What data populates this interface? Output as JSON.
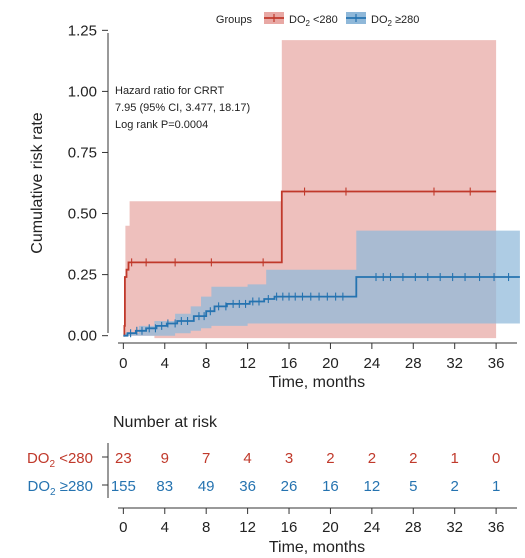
{
  "chart_data": [
    {
      "type": "line",
      "subtype": "kaplan-meier-cumulative-risk",
      "title": "",
      "xlabel": "Time, months",
      "ylabel": "Cumulative risk rate",
      "xlim": [
        -1,
        38.5
      ],
      "ylim": [
        -0.03,
        1.28
      ],
      "x_ticks": [
        0,
        4,
        8,
        12,
        16,
        20,
        24,
        28,
        32,
        36
      ],
      "y_ticks": [
        0.0,
        0.25,
        0.5,
        0.75,
        1.0,
        1.25
      ],
      "y_tick_labels": [
        "0.00",
        "0.25",
        "0.50",
        "0.75",
        "1.00",
        "1.25"
      ],
      "grid": false,
      "legend": {
        "title": "Groups",
        "placement": "top",
        "entries": [
          {
            "label": "DO",
            "sub": "2",
            "suffix": " <280",
            "color": "#c0392b"
          },
          {
            "label": "DO",
            "sub": "2",
            "suffix": " ≥280",
            "color": "#2573b0"
          }
        ]
      },
      "annotation": [
        "Hazard ratio for CRRT",
        "7.95 (95% CI, 3.477, 18.17)",
        "Log rank P=0.0004"
      ],
      "series": [
        {
          "name": "DO2 <280",
          "color": "#c0392b",
          "fill": "#e8a8a4",
          "steps": [
            [
              0,
              0
            ],
            [
              0.1,
              0.04
            ],
            [
              0.15,
              0.24
            ],
            [
              0.3,
              0.27
            ],
            [
              0.5,
              0.3
            ],
            [
              15.3,
              0.3
            ],
            [
              15.3,
              0.59
            ],
            [
              36,
              0.59
            ]
          ],
          "ci_steps": [
            [
              0.2,
              0.0,
              0.45
            ],
            [
              0.6,
              0.0,
              0.55
            ],
            [
              3,
              -0.01,
              0.55
            ],
            [
              15.3,
              -0.01,
              0.55
            ],
            [
              15.3,
              -0.01,
              1.21
            ],
            [
              36,
              -0.01,
              1.21
            ]
          ],
          "censor": [
            0.8,
            2.2,
            5,
            8.5,
            13.5,
            17.5,
            21.5,
            30,
            33.5
          ]
        },
        {
          "name": "DO2 ≥280",
          "color": "#2573b0",
          "fill": "#8fb8d9",
          "steps": [
            [
              0,
              0
            ],
            [
              0.4,
              0.01
            ],
            [
              1.2,
              0.02
            ],
            [
              2.2,
              0.03
            ],
            [
              3.2,
              0.04
            ],
            [
              4.2,
              0.05
            ],
            [
              5.2,
              0.06
            ],
            [
              6.8,
              0.08
            ],
            [
              8,
              0.1
            ],
            [
              8.8,
              0.12
            ],
            [
              10,
              0.13
            ],
            [
              12.2,
              0.14
            ],
            [
              13.6,
              0.15
            ],
            [
              14.6,
              0.16
            ],
            [
              22.5,
              0.16
            ],
            [
              22.5,
              0.24
            ],
            [
              38.3,
              0.24
            ]
          ],
          "ci_steps": [
            [
              0,
              0,
              0.01
            ],
            [
              1.5,
              0.0,
              0.04
            ],
            [
              3,
              0.0,
              0.06
            ],
            [
              5,
              0.01,
              0.09
            ],
            [
              6.5,
              0.02,
              0.12
            ],
            [
              7.5,
              0.03,
              0.16
            ],
            [
              8.5,
              0.04,
              0.2
            ],
            [
              12,
              0.05,
              0.21
            ],
            [
              13.8,
              0.05,
              0.27
            ],
            [
              22.5,
              0.05,
              0.27
            ],
            [
              22.5,
              0.05,
              0.43
            ],
            [
              38.3,
              0.05,
              0.43
            ]
          ],
          "censor": [
            0.7,
            1.3,
            1.8,
            2.5,
            3.1,
            3.7,
            4.3,
            5.0,
            5.6,
            6.2,
            7.3,
            7.8,
            8.4,
            9.2,
            9.9,
            10.6,
            11.2,
            11.8,
            12.5,
            13.1,
            14.0,
            14.8,
            15.4,
            16.0,
            16.6,
            17.3,
            18.1,
            18.9,
            19.7,
            20.5,
            21.2,
            24.4,
            25.1,
            25.8,
            27.0,
            28.2,
            29.4,
            30.6,
            31.8,
            33.0,
            34.4,
            35.8,
            37.2
          ]
        }
      ]
    },
    {
      "type": "table",
      "title": "Number at risk",
      "xlabel": "Time, months",
      "xlim": [
        -1,
        38.5
      ],
      "x_ticks": [
        0,
        4,
        8,
        12,
        16,
        20,
        24,
        28,
        32,
        36
      ],
      "rows": [
        {
          "label": "DO",
          "sub": "2",
          "suffix": " <280",
          "color": "#c0392b",
          "values": [
            23,
            9,
            7,
            4,
            3,
            2,
            2,
            2,
            1,
            0
          ]
        },
        {
          "label": "DO",
          "sub": "2",
          "suffix": " ≥280",
          "color": "#2573b0",
          "values": [
            155,
            83,
            49,
            36,
            26,
            16,
            12,
            5,
            2,
            1
          ]
        }
      ]
    }
  ]
}
